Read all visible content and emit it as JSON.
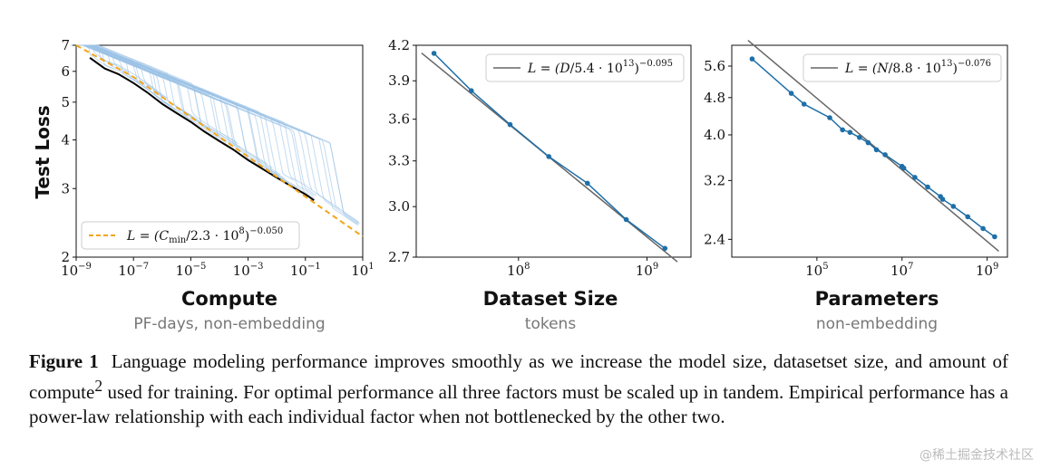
{
  "chart_data": [
    {
      "type": "line",
      "ylabel": "Test Loss",
      "xlabel": "Compute",
      "xsublabel": "PF-days, non-embedding",
      "xscale": "log",
      "yscale": "log",
      "xlim": [
        1e-09,
        10
      ],
      "ylim": [
        2,
        7
      ],
      "xticks": [
        "10^-9",
        "10^-7",
        "10^-5",
        "10^-3",
        "10^-1",
        "10^1"
      ],
      "yticks": [
        {
          "value": 2,
          "label": "2"
        },
        {
          "value": 3,
          "label": "3"
        },
        {
          "value": 4,
          "label": "4"
        },
        {
          "value": 5,
          "label": "5"
        },
        {
          "value": 6,
          "label": "6"
        },
        {
          "value": 7,
          "label": "7"
        }
      ],
      "legend": "L = (C_min/2.3 · 10^8)^−0.050",
      "legend_position": "lower-left",
      "fit": {
        "coef": 230000000.0,
        "exponent": -0.05
      },
      "series": [
        {
          "name": "L = (C_min/2.3 · 10^8)^−0.050",
          "style": "dashed",
          "color": "#f2a51a",
          "x": [
            1e-09,
            1e-07,
            1e-05,
            0.001,
            0.1,
            10
          ],
          "y": [
            7.34,
            5.8,
            4.58,
            3.62,
            2.86,
            2.26
          ]
        },
        {
          "style": "frontier",
          "color": "#000000",
          "x": [
            3e-09,
            1e-08,
            3e-08,
            1e-07,
            3e-07,
            1e-06,
            3e-06,
            1e-05,
            3e-05,
            0.0001,
            0.0003,
            0.001,
            0.003,
            0.01,
            0.03,
            0.1,
            0.2
          ],
          "y": [
            6.5,
            6.1,
            5.9,
            5.6,
            5.3,
            4.95,
            4.7,
            4.45,
            4.2,
            3.97,
            3.78,
            3.55,
            3.38,
            3.2,
            3.05,
            2.9,
            2.8
          ]
        }
      ],
      "runs_color": "#9dc3e6"
    },
    {
      "type": "line",
      "xlabel": "Dataset Size",
      "xsublabel": "tokens",
      "xscale": "log",
      "yscale": "log",
      "xlim": [
        16000000.0,
        2200000000.0
      ],
      "ylim": [
        2.7,
        4.2
      ],
      "xticks": [
        "10^8",
        "10^9"
      ],
      "yticks": [
        {
          "value": 2.7,
          "label": "2.7"
        },
        {
          "value": 3.0,
          "label": "3.0"
        },
        {
          "value": 3.3,
          "label": "3.3"
        },
        {
          "value": 3.6,
          "label": "3.6"
        },
        {
          "value": 3.9,
          "label": "3.9"
        },
        {
          "value": 4.2,
          "label": "4.2"
        }
      ],
      "legend": "L = (D/5.4 · 10^13)^−0.095",
      "legend_position": "upper-right",
      "fit": {
        "coef": 54000000000000.0,
        "exponent": -0.095
      },
      "series": [
        {
          "name": "data",
          "color": "#1f6fa8",
          "x": [
            22000000.0,
            43000000.0,
            86000000.0,
            172000000.0,
            344000000.0,
            690000000.0,
            1380000000.0
          ],
          "y": [
            4.13,
            3.82,
            3.56,
            3.33,
            3.15,
            2.92,
            2.75
          ]
        }
      ]
    },
    {
      "type": "line",
      "xlabel": "Parameters",
      "xsublabel": "non-embedding",
      "xscale": "log",
      "yscale": "log",
      "xlim": [
        1000.0,
        3000000000.0
      ],
      "ylim": [
        2.2,
        6.2
      ],
      "xticks": [
        "10^5",
        "10^7",
        "10^9"
      ],
      "yticks": [
        {
          "value": 2.4,
          "label": "2.4"
        },
        {
          "value": 3.2,
          "label": "3.2"
        },
        {
          "value": 4.0,
          "label": "4.0"
        },
        {
          "value": 4.8,
          "label": "4.8"
        },
        {
          "value": 5.6,
          "label": "5.6"
        }
      ],
      "legend": "L = (N/8.8 · 10^13)^−0.076",
      "legend_position": "upper-right",
      "fit": {
        "coef": 88000000000000.0,
        "exponent": -0.076
      },
      "series": [
        {
          "name": "data",
          "color": "#1f6fa8",
          "x": [
            3000.0,
            25000.0,
            50000.0,
            200000.0,
            400000.0,
            600000.0,
            1000000.0,
            1600000.0,
            2500000.0,
            4000000.0,
            10000000.0,
            11000000.0,
            20000000.0,
            40000000.0,
            80000000.0,
            90000000.0,
            160000000.0,
            350000000.0,
            800000000.0,
            1500000000.0
          ],
          "y": [
            5.8,
            4.9,
            4.65,
            4.35,
            4.1,
            4.05,
            3.95,
            3.85,
            3.72,
            3.63,
            3.43,
            3.4,
            3.25,
            3.1,
            2.96,
            2.92,
            2.82,
            2.68,
            2.53,
            2.43
          ]
        }
      ]
    }
  ],
  "caption": {
    "label": "Figure 1",
    "text_1": "Language modeling performance improves smoothly as we increase the model size, datasetset size, and amount of compute",
    "footnote": "2",
    "text_2": " used for training. For optimal performance all three factors must be scaled up in tandem. Empirical performance has a power-law relationship with each individual factor when not bottlenecked by the other two."
  },
  "watermark": "@稀土掘金技术社区"
}
